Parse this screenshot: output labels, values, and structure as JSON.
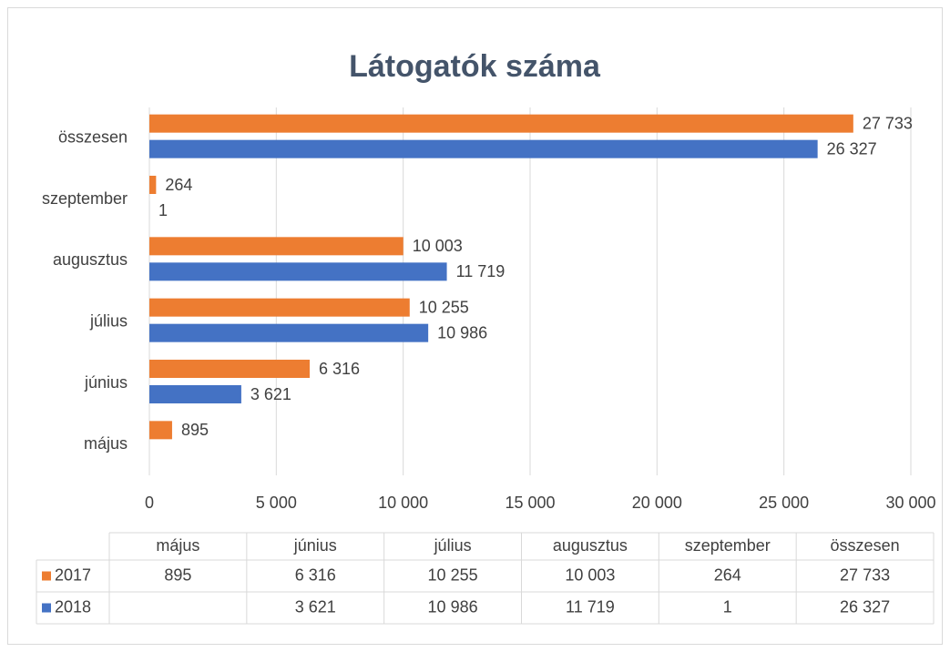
{
  "chart_data": {
    "type": "barh",
    "title": "Látogatók száma",
    "categories": [
      "május",
      "június",
      "július",
      "augusztus",
      "szeptember",
      "összesen"
    ],
    "series": [
      {
        "name": "2017",
        "color": "#ED7D31",
        "values": [
          895,
          6316,
          10255,
          10003,
          264,
          27733
        ],
        "value_labels": [
          "895",
          "6 316",
          "10 255",
          "10 003",
          "264",
          "27 733"
        ]
      },
      {
        "name": "2018",
        "color": "#4472C4",
        "values": [
          null,
          3621,
          10986,
          11719,
          1,
          26327
        ],
        "value_labels": [
          null,
          "3 621",
          "10 986",
          "11 719",
          "1",
          "26 327"
        ]
      }
    ],
    "xlim": [
      0,
      30000
    ],
    "xticks": [
      0,
      {
        "value": 5000,
        "label": "5 000"
      },
      {
        "value": 10000,
        "label": "10 000"
      },
      {
        "value": 15000,
        "label": "15 000"
      },
      {
        "value": 20000,
        "label": "20 000"
      },
      {
        "value": 25000,
        "label": "25 000"
      },
      {
        "value": 30000,
        "label": "30 000"
      }
    ],
    "grid": true
  }
}
